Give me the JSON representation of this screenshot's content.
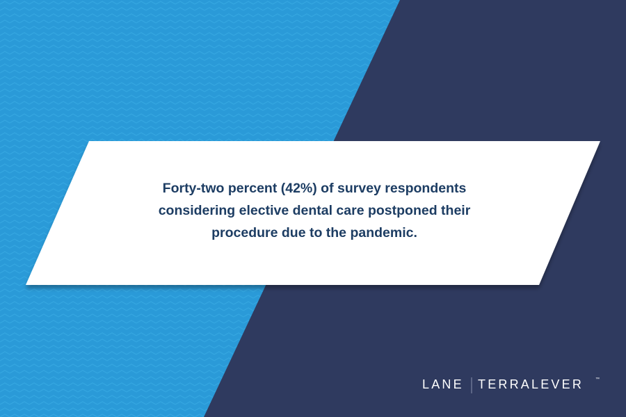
{
  "statement": {
    "lines": [
      "Forty-two percent (42%) of survey respondents",
      "considering elective dental care postponed their",
      "procedure due to the pandemic."
    ]
  },
  "logo": {
    "left": "LANE",
    "right": "TERRALEVER",
    "mark": "™"
  }
}
